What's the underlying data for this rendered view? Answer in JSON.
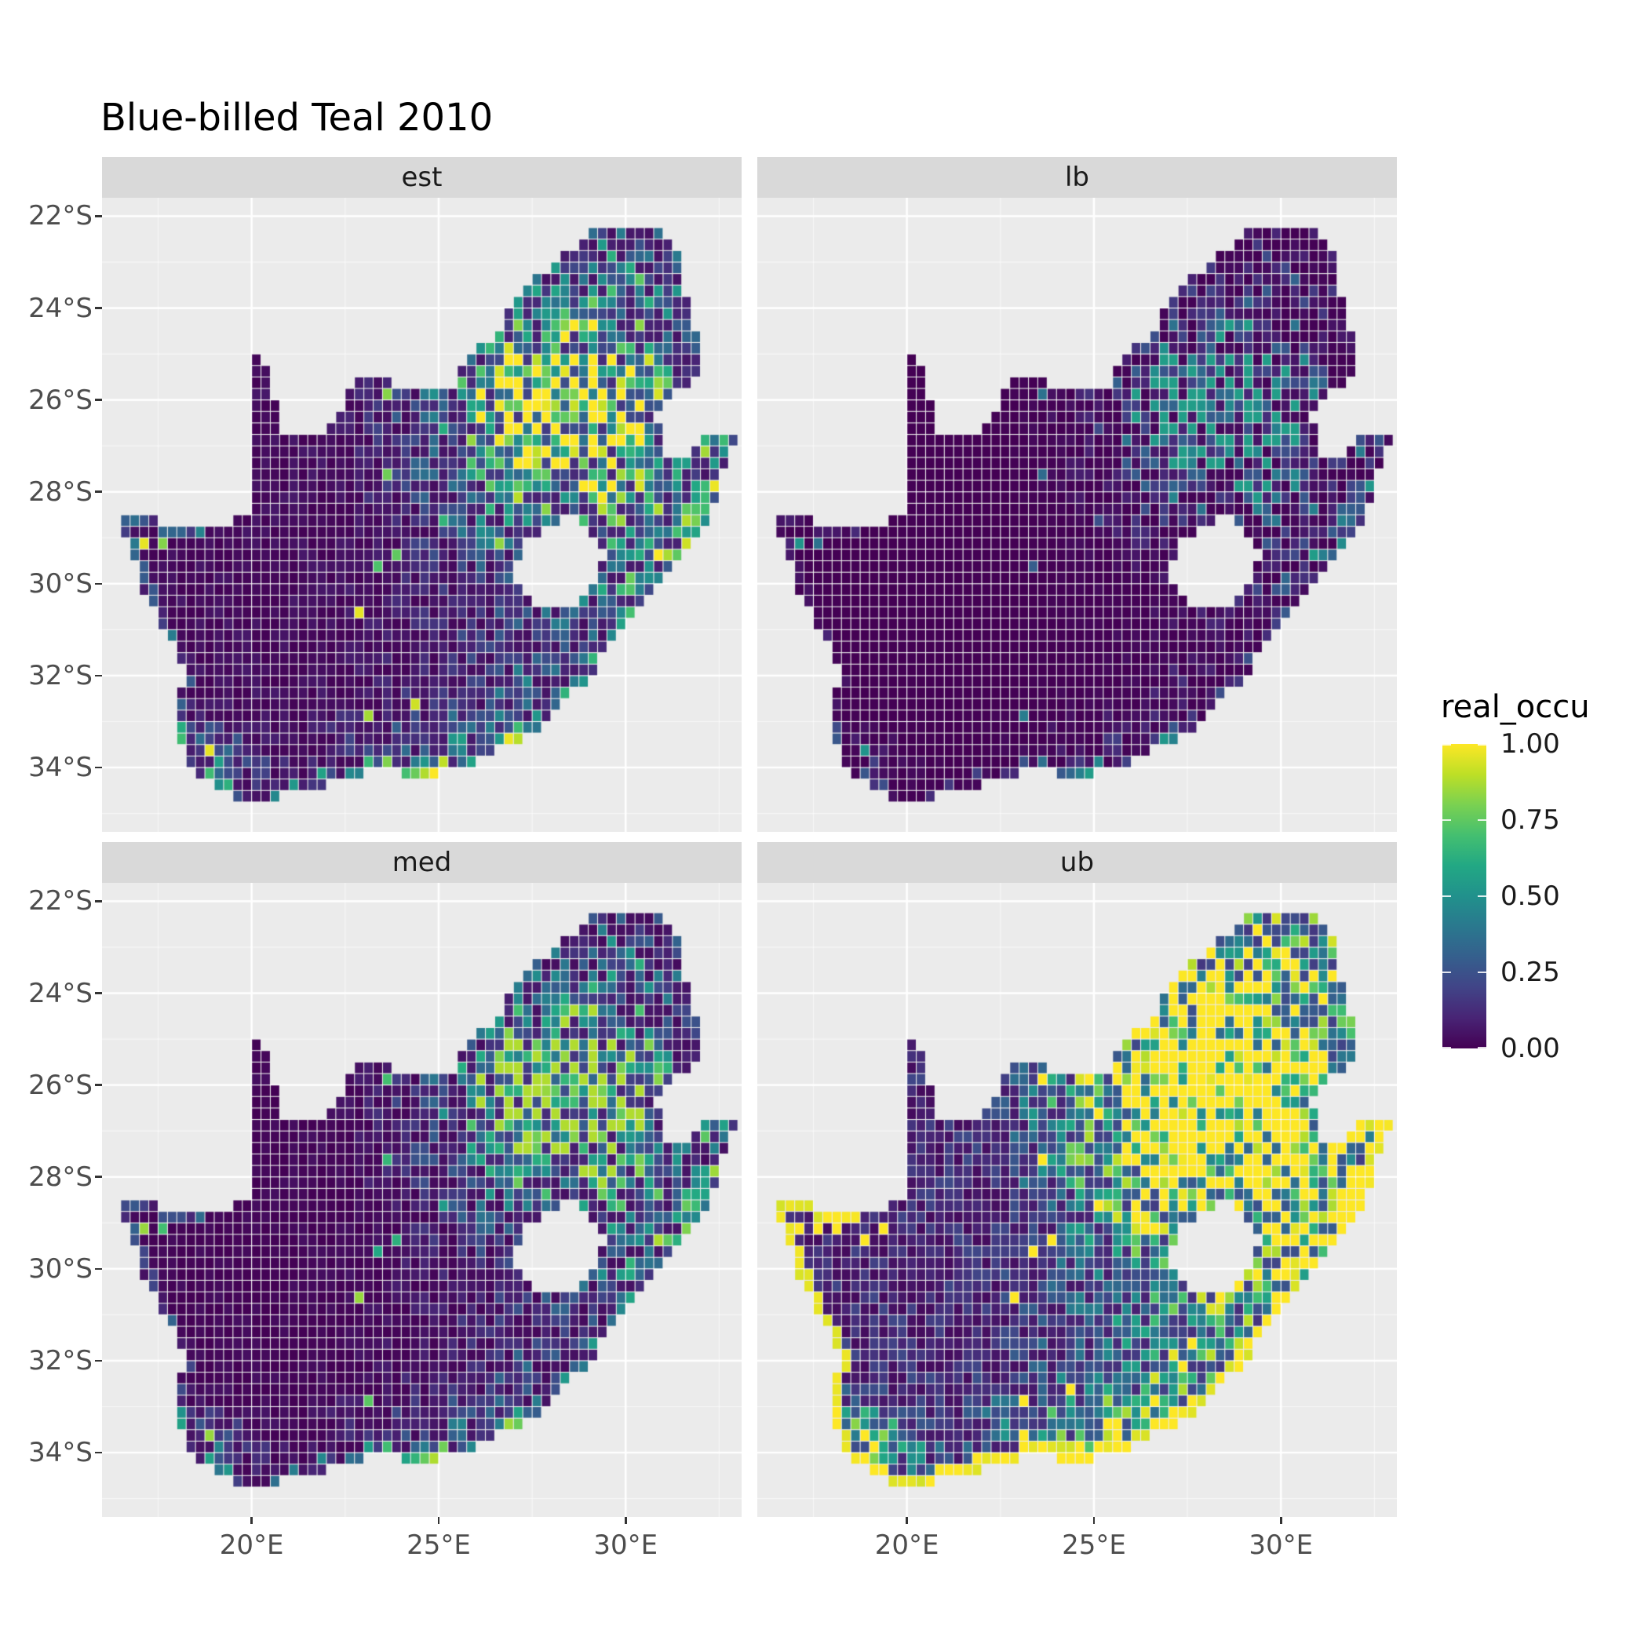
{
  "title": "Blue-billed Teal 2010",
  "legend": {
    "title": "real_occu",
    "labels": [
      "1.00",
      "0.75",
      "0.50",
      "0.25",
      "0.00"
    ],
    "values": [
      1.0,
      0.75,
      0.5,
      0.25,
      0.0
    ]
  },
  "colors": {
    "panel_bg": "#ebebeb",
    "strip_bg": "#d9d9d9",
    "strip_text": "#1a1a1a",
    "grid": "#ffffff",
    "axis_text": "#4d4d4d",
    "tick": "#333333",
    "title_text": "#000000"
  },
  "chart_data": {
    "type": "heatmap",
    "title": "Blue-billed Teal 2010",
    "map_region": "South Africa",
    "facets": [
      {
        "label": "est",
        "gain": 1.0,
        "gamma": 1.0,
        "coast_boost": false,
        "sparkle_threshold": 0.99
      },
      {
        "label": "lb",
        "gain": 0.55,
        "gamma": 1.9,
        "coast_boost": false,
        "sparkle_threshold": 0.994
      },
      {
        "label": "med",
        "gain": 0.88,
        "gamma": 1.15,
        "coast_boost": false,
        "sparkle_threshold": 0.991
      },
      {
        "label": "ub",
        "gain": 1.9,
        "gamma": 0.8,
        "coast_boost": true,
        "sparkle_threshold": 0.986
      }
    ],
    "x_ticks": [
      {
        "value": 20,
        "label": "20°E"
      },
      {
        "value": 25,
        "label": "25°E"
      },
      {
        "value": 30,
        "label": "30°E"
      }
    ],
    "y_ticks": [
      {
        "value": -22,
        "label": "22°S"
      },
      {
        "value": -24,
        "label": "24°S"
      },
      {
        "value": -26,
        "label": "26°S"
      },
      {
        "value": -28,
        "label": "28°S"
      },
      {
        "value": -30,
        "label": "30°S"
      },
      {
        "value": -32,
        "label": "32°S"
      },
      {
        "value": -34,
        "label": "34°S"
      }
    ],
    "grid": {
      "minor_x": [
        17.5,
        22.5,
        27.5,
        32.5
      ],
      "minor_y": [
        -23,
        -25,
        -27,
        -29,
        -31,
        -33,
        -35
      ]
    },
    "value_scale": {
      "name": "real_occu",
      "min": 0.0,
      "max": 1.0,
      "palette": "viridis"
    },
    "viridis": [
      "#440154",
      "#482475",
      "#414487",
      "#355f8d",
      "#2a788e",
      "#21918c",
      "#22a884",
      "#44bf70",
      "#7ad151",
      "#bddf26",
      "#fde725"
    ],
    "extent": {
      "lon": [
        16.0,
        33.1
      ],
      "lat": [
        -35.4,
        -21.6
      ]
    },
    "cell_deg": 0.25,
    "hotspots": [
      [
        28.3,
        -26.0,
        1.3,
        0.95,
        1.05
      ],
      [
        29.3,
        -27.2,
        2.4,
        1.9,
        0.45
      ],
      [
        26.9,
        -26.6,
        1.8,
        1.4,
        0.4
      ],
      [
        29.6,
        -23.7,
        1.7,
        1.1,
        0.3
      ],
      [
        30.9,
        -29.4,
        1.1,
        0.9,
        0.35
      ],
      [
        18.8,
        -33.95,
        0.9,
        0.6,
        0.45
      ],
      [
        25.2,
        -33.8,
        2.2,
        0.7,
        0.3
      ],
      [
        28.1,
        -32.5,
        1.6,
        1.0,
        0.22
      ]
    ],
    "outline_south_africa": [
      [
        16.45,
        -28.6
      ],
      [
        17.1,
        -28.4
      ],
      [
        17.8,
        -28.76
      ],
      [
        18.6,
        -28.86
      ],
      [
        19.3,
        -28.7
      ],
      [
        19.98,
        -28.42
      ],
      [
        19.98,
        -24.77
      ],
      [
        20.35,
        -25.1
      ],
      [
        20.6,
        -25.95
      ],
      [
        20.74,
        -26.84
      ],
      [
        21.7,
        -26.85
      ],
      [
        22.3,
        -26.3
      ],
      [
        22.9,
        -25.5
      ],
      [
        23.6,
        -25.6
      ],
      [
        24.4,
        -25.76
      ],
      [
        25.4,
        -25.7
      ],
      [
        25.85,
        -24.9
      ],
      [
        26.5,
        -24.62
      ],
      [
        27.1,
        -23.7
      ],
      [
        27.9,
        -23.2
      ],
      [
        28.6,
        -22.65
      ],
      [
        29.1,
        -22.2
      ],
      [
        29.8,
        -22.14
      ],
      [
        30.4,
        -22.3
      ],
      [
        31.3,
        -22.4
      ],
      [
        31.6,
        -23.6
      ],
      [
        31.9,
        -24.6
      ],
      [
        31.98,
        -25.5
      ],
      [
        31.4,
        -25.72
      ],
      [
        30.85,
        -26.25
      ],
      [
        30.95,
        -27.1
      ],
      [
        31.6,
        -27.25
      ],
      [
        32.15,
        -26.85
      ],
      [
        32.89,
        -26.86
      ],
      [
        32.55,
        -27.8
      ],
      [
        32.25,
        -28.55
      ],
      [
        31.7,
        -29.2
      ],
      [
        31.05,
        -29.9
      ],
      [
        30.3,
        -30.7
      ],
      [
        29.5,
        -31.5
      ],
      [
        28.8,
        -32.2
      ],
      [
        28.0,
        -32.95
      ],
      [
        27.1,
        -33.4
      ],
      [
        26.4,
        -33.72
      ],
      [
        25.65,
        -34.0
      ],
      [
        24.8,
        -34.18
      ],
      [
        23.4,
        -34.08
      ],
      [
        22.6,
        -34.18
      ],
      [
        21.8,
        -34.4
      ],
      [
        20.8,
        -34.62
      ],
      [
        20.0,
        -34.82
      ],
      [
        19.4,
        -34.62
      ],
      [
        19.0,
        -34.34
      ],
      [
        18.78,
        -34.1
      ],
      [
        18.44,
        -34.34
      ],
      [
        18.32,
        -33.9
      ],
      [
        18.0,
        -33.15
      ],
      [
        17.86,
        -32.7
      ],
      [
        18.26,
        -32.05
      ],
      [
        17.88,
        -31.35
      ],
      [
        17.22,
        -30.4
      ],
      [
        16.94,
        -29.6
      ]
    ],
    "outline_lesotho_hole": [
      [
        27.0,
        -29.6
      ],
      [
        27.4,
        -29.05
      ],
      [
        27.95,
        -28.66
      ],
      [
        28.6,
        -28.6
      ],
      [
        29.15,
        -28.9
      ],
      [
        29.45,
        -29.3
      ],
      [
        29.25,
        -29.95
      ],
      [
        28.75,
        -30.4
      ],
      [
        28.15,
        -30.6
      ],
      [
        27.55,
        -30.35
      ],
      [
        27.08,
        -30.0
      ]
    ]
  }
}
